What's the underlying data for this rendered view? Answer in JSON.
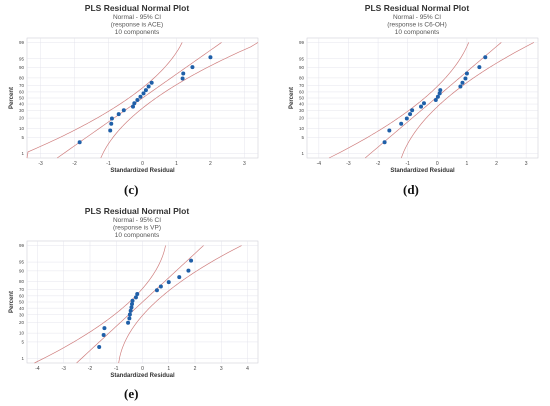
{
  "chart_data": [
    {
      "type": "scatter",
      "panel_label": "(c)",
      "title": "PLS Residual Normal Plot",
      "subtitle_lines": [
        "Normal - 95% CI",
        "(response is ACE)",
        "10 components"
      ],
      "xlabel": "Standardized Residual",
      "ylabel": "Percent",
      "xlim": [
        -3.4,
        3.4
      ],
      "x_ticks": [
        -3,
        -2,
        -1,
        0,
        1,
        2,
        3
      ],
      "y_ticks": [
        1,
        5,
        10,
        20,
        30,
        40,
        50,
        60,
        70,
        80,
        90,
        95,
        99
      ],
      "grid": true,
      "fit_line": {
        "mean": 0,
        "sd": 1.0
      },
      "ci_halfwidth": 0.4,
      "x": [
        -1.85,
        -0.95,
        -0.92,
        -0.9,
        -0.7,
        -0.55,
        -0.28,
        -0.24,
        -0.15,
        -0.06,
        0.03,
        0.1,
        0.18,
        0.27,
        1.18,
        1.2,
        1.47,
        2.0
      ],
      "y": [
        3.2,
        8.7,
        14.1,
        19.6,
        25.0,
        30.4,
        35.9,
        41.3,
        46.7,
        52.1,
        57.6,
        63.0,
        68.5,
        73.9,
        79.3,
        84.7,
        90.2,
        95.6
      ]
    },
    {
      "type": "scatter",
      "panel_label": "(d)",
      "title": "PLS Residual Normal Plot",
      "subtitle_lines": [
        "Normal - 95% CI",
        "(response is C6-OH)",
        "10 components"
      ],
      "xlabel": "Standardized Residual",
      "ylabel": "Percent",
      "xlim": [
        -4.4,
        3.4
      ],
      "x_ticks": [
        -4,
        -3,
        -2,
        -1,
        0,
        1,
        2,
        3
      ],
      "y_ticks": [
        1,
        5,
        10,
        20,
        30,
        40,
        50,
        60,
        70,
        80,
        90,
        95,
        99
      ],
      "grid": true,
      "fit_line": {
        "mean": -0.05,
        "sd": 0.95
      },
      "ci_halfwidth": 0.38,
      "x": [
        -1.78,
        -1.62,
        -1.22,
        -1.03,
        -0.92,
        -0.85,
        -0.55,
        -0.45,
        -0.05,
        0.02,
        0.08,
        0.1,
        0.78,
        0.85,
        0.95,
        1.0,
        1.42,
        1.62
      ],
      "y": [
        3.2,
        8.7,
        14.1,
        19.6,
        25.0,
        30.4,
        35.9,
        41.3,
        46.7,
        52.1,
        57.6,
        63.0,
        68.5,
        73.9,
        79.3,
        84.7,
        90.2,
        95.6
      ]
    },
    {
      "type": "scatter",
      "panel_label": "(e)",
      "title": "PLS Residual Normal Plot",
      "subtitle_lines": [
        "Normal - 95% CI",
        "(response is VP)",
        "10 components"
      ],
      "xlabel": "Standardized Residual",
      "ylabel": "Percent",
      "xlim": [
        -4.4,
        4.4
      ],
      "x_ticks": [
        -4,
        -3,
        -2,
        -1,
        0,
        1,
        2,
        3,
        4
      ],
      "y_ticks": [
        1,
        5,
        10,
        20,
        30,
        40,
        50,
        60,
        70,
        80,
        90,
        95,
        99
      ],
      "grid": true,
      "fit_line": {
        "mean": 0,
        "sd": 1.0
      },
      "ci_halfwidth": 0.5,
      "x": [
        -1.65,
        -1.48,
        -1.45,
        -0.55,
        -0.5,
        -0.48,
        -0.45,
        -0.42,
        -0.4,
        -0.38,
        -0.25,
        -0.2,
        0.55,
        0.7,
        1.0,
        1.4,
        1.75,
        1.85
      ],
      "y": [
        3.2,
        8.7,
        14.1,
        19.6,
        25.0,
        30.4,
        35.9,
        41.3,
        46.7,
        52.1,
        57.6,
        63.0,
        68.5,
        73.9,
        79.3,
        84.7,
        90.2,
        95.6
      ]
    }
  ],
  "colors": {
    "points": "#1f5fa8",
    "fit_line": "#d08080",
    "grid": "#e4e4ec",
    "frame": "#d0d0d8",
    "text": "#333333"
  }
}
